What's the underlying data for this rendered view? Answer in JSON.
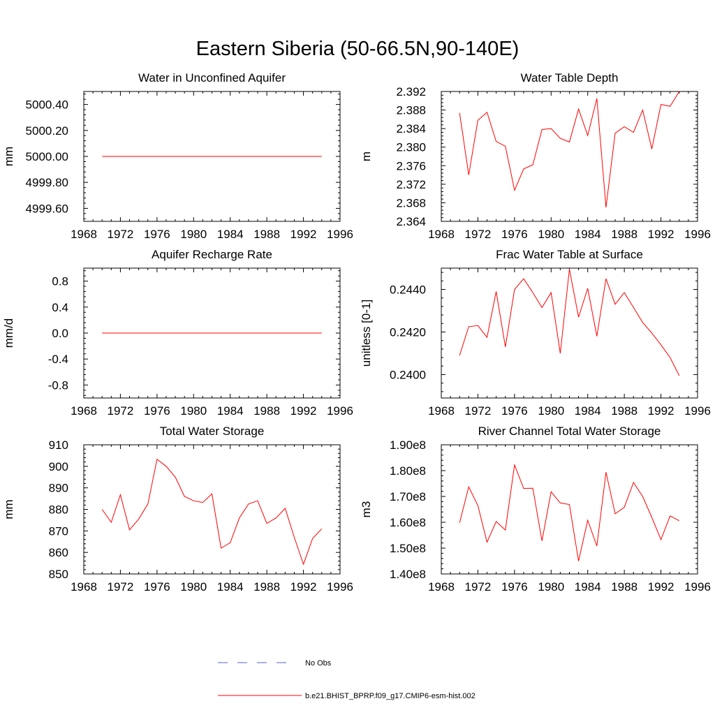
{
  "title": "Eastern Siberia (50-66.5N,90-140E)",
  "legend": {
    "items": [
      {
        "label": "No Obs",
        "color": "#5060c8",
        "style": "dashed"
      },
      {
        "label": "b.e21.BHIST_BPRP.f09_g17.CMIP6-esm-hist.002",
        "color": "#ff0000",
        "style": "solid"
      }
    ]
  },
  "chart_data": [
    {
      "type": "line",
      "title": "Water in Unconfined Aquifer",
      "ylabel": "mm",
      "xlim": [
        1968,
        1996
      ],
      "xticks": [
        1968,
        1972,
        1976,
        1980,
        1984,
        1988,
        1992,
        1996
      ],
      "ylim": [
        4999.5,
        5000.5
      ],
      "yticks": [
        4999.6,
        4999.8,
        5000.0,
        5000.2,
        5000.4
      ],
      "ytick_labels": [
        "4999.60",
        "4999.80",
        "5000.00",
        "5000.20",
        "5000.40"
      ],
      "x": [
        1970,
        1971,
        1972,
        1973,
        1974,
        1975,
        1976,
        1977,
        1978,
        1979,
        1980,
        1981,
        1982,
        1983,
        1984,
        1985,
        1986,
        1987,
        1988,
        1989,
        1990,
        1991,
        1992,
        1993,
        1994
      ],
      "series": [
        {
          "values": [
            5000.0,
            5000.0,
            5000.0,
            5000.0,
            5000.0,
            5000.0,
            5000.0,
            5000.0,
            5000.0,
            5000.0,
            5000.0,
            5000.0,
            5000.0,
            5000.0,
            5000.0,
            5000.0,
            5000.0,
            5000.0,
            5000.0,
            5000.0,
            5000.0,
            5000.0,
            5000.0,
            5000.0,
            5000.0
          ],
          "color": "#ff0000"
        }
      ]
    },
    {
      "type": "line",
      "title": "Water Table Depth",
      "ylabel": "m",
      "xlim": [
        1968,
        1996
      ],
      "xticks": [
        1968,
        1972,
        1976,
        1980,
        1984,
        1988,
        1992,
        1996
      ],
      "ylim": [
        2.364,
        2.392
      ],
      "yticks": [
        2.364,
        2.368,
        2.372,
        2.376,
        2.38,
        2.384,
        2.388,
        2.392
      ],
      "ytick_labels": [
        "2.364",
        "2.368",
        "2.372",
        "2.376",
        "2.380",
        "2.384",
        "2.388",
        "2.392"
      ],
      "x": [
        1970,
        1971,
        1972,
        1973,
        1974,
        1975,
        1976,
        1977,
        1978,
        1979,
        1980,
        1981,
        1982,
        1983,
        1984,
        1985,
        1986,
        1987,
        1988,
        1989,
        1990,
        1991,
        1992,
        1993,
        1994
      ],
      "series": [
        {
          "values": [
            2.3874,
            2.374,
            2.3858,
            2.3875,
            2.3812,
            2.3802,
            2.3707,
            2.3753,
            2.3762,
            2.3838,
            2.384,
            2.3819,
            2.3811,
            2.3882,
            2.3825,
            2.3905,
            2.367,
            2.383,
            2.3844,
            2.3832,
            2.388,
            2.3796,
            2.3892,
            2.3888,
            2.392
          ],
          "color": "#ff0000"
        }
      ]
    },
    {
      "type": "line",
      "title": "Aquifer Recharge Rate",
      "ylabel": "mm/d",
      "xlim": [
        1968,
        1996
      ],
      "xticks": [
        1968,
        1972,
        1976,
        1980,
        1984,
        1988,
        1992,
        1996
      ],
      "ylim": [
        -1.0,
        1.0
      ],
      "yticks": [
        -0.8,
        -0.4,
        0.0,
        0.4,
        0.8
      ],
      "ytick_labels": [
        "-0.8",
        "-0.4",
        "0.0",
        "0.4",
        "0.8"
      ],
      "x": [
        1970,
        1971,
        1972,
        1973,
        1974,
        1975,
        1976,
        1977,
        1978,
        1979,
        1980,
        1981,
        1982,
        1983,
        1984,
        1985,
        1986,
        1987,
        1988,
        1989,
        1990,
        1991,
        1992,
        1993,
        1994
      ],
      "series": [
        {
          "values": [
            0.0,
            0.0,
            0.0,
            0.0,
            0.0,
            0.0,
            0.0,
            0.0,
            0.0,
            0.0,
            0.0,
            0.0,
            0.0,
            0.0,
            0.0,
            0.0,
            0.0,
            0.0,
            0.0,
            0.0,
            0.0,
            0.0,
            0.0,
            0.0,
            0.0
          ],
          "color": "#ff0000"
        }
      ]
    },
    {
      "type": "line",
      "title": "Frac Water Table at Surface",
      "ylabel": "unitless [0-1]",
      "xlim": [
        1968,
        1996
      ],
      "xticks": [
        1968,
        1972,
        1976,
        1980,
        1984,
        1988,
        1992,
        1996
      ],
      "ylim": [
        0.2389,
        0.245
      ],
      "yticks": [
        0.24,
        0.242,
        0.244
      ],
      "ytick_labels": [
        "0.2400",
        "0.2420",
        "0.2440"
      ],
      "x": [
        1970,
        1971,
        1972,
        1973,
        1974,
        1975,
        1976,
        1977,
        1978,
        1979,
        1980,
        1981,
        1982,
        1983,
        1984,
        1985,
        1986,
        1987,
        1988,
        1989,
        1990,
        1991,
        1992,
        1993,
        1994
      ],
      "series": [
        {
          "values": [
            0.2409,
            0.24225,
            0.2423,
            0.24175,
            0.2439,
            0.2413,
            0.244,
            0.2445,
            0.24385,
            0.24315,
            0.24385,
            0.241,
            0.24495,
            0.2427,
            0.24405,
            0.2418,
            0.2445,
            0.2433,
            0.24385,
            0.24315,
            0.24245,
            0.24195,
            0.2414,
            0.2408,
            0.23995
          ],
          "color": "#ff0000"
        }
      ]
    },
    {
      "type": "line",
      "title": "Total Water Storage",
      "ylabel": "mm",
      "xlim": [
        1968,
        1996
      ],
      "xticks": [
        1968,
        1972,
        1976,
        1980,
        1984,
        1988,
        1992,
        1996
      ],
      "ylim": [
        850,
        910
      ],
      "yticks": [
        850,
        860,
        870,
        880,
        890,
        900,
        910
      ],
      "ytick_labels": [
        "850",
        "860",
        "870",
        "880",
        "890",
        "900",
        "910"
      ],
      "x": [
        1970,
        1971,
        1972,
        1973,
        1974,
        1975,
        1976,
        1977,
        1978,
        1979,
        1980,
        1981,
        1982,
        1983,
        1984,
        1985,
        1986,
        1987,
        1988,
        1989,
        1990,
        1991,
        1992,
        1993,
        1994
      ],
      "series": [
        {
          "values": [
            880.0,
            874.0,
            886.8,
            870.5,
            875.5,
            882.5,
            903.3,
            900.0,
            895.0,
            886.0,
            884.0,
            883.2,
            887.2,
            862.0,
            864.5,
            876.0,
            882.5,
            884.0,
            873.5,
            876.0,
            880.5,
            867.0,
            854.5,
            866.5,
            871.0
          ],
          "color": "#ff0000"
        }
      ]
    },
    {
      "type": "line",
      "title": "River Channel Total Water Storage",
      "ylabel": "m3",
      "xlim": [
        1968,
        1996
      ],
      "xticks": [
        1968,
        1972,
        1976,
        1980,
        1984,
        1988,
        1992,
        1996
      ],
      "ylim": [
        140000000,
        190000000
      ],
      "yticks": [
        140000000,
        150000000,
        160000000,
        170000000,
        180000000,
        190000000
      ],
      "ytick_labels": [
        "1.40e8",
        "1.50e8",
        "1.60e8",
        "1.70e8",
        "1.80e8",
        "1.90e8"
      ],
      "x": [
        1970,
        1971,
        1972,
        1973,
        1974,
        1975,
        1976,
        1977,
        1978,
        1979,
        1980,
        1981,
        1982,
        1983,
        1984,
        1985,
        1986,
        1987,
        1988,
        1989,
        1990,
        1991,
        1992,
        1993,
        1994
      ],
      "series": [
        {
          "values": [
            159800000,
            173700000,
            166500000,
            152300000,
            160300000,
            157000000,
            182200000,
            173100000,
            173200000,
            152800000,
            171800000,
            167500000,
            166900000,
            145000000,
            160800000,
            150800000,
            179400000,
            163300000,
            165800000,
            175400000,
            170000000,
            161900000,
            153300000,
            162500000,
            160600000
          ],
          "color": "#ff0000"
        }
      ]
    }
  ]
}
